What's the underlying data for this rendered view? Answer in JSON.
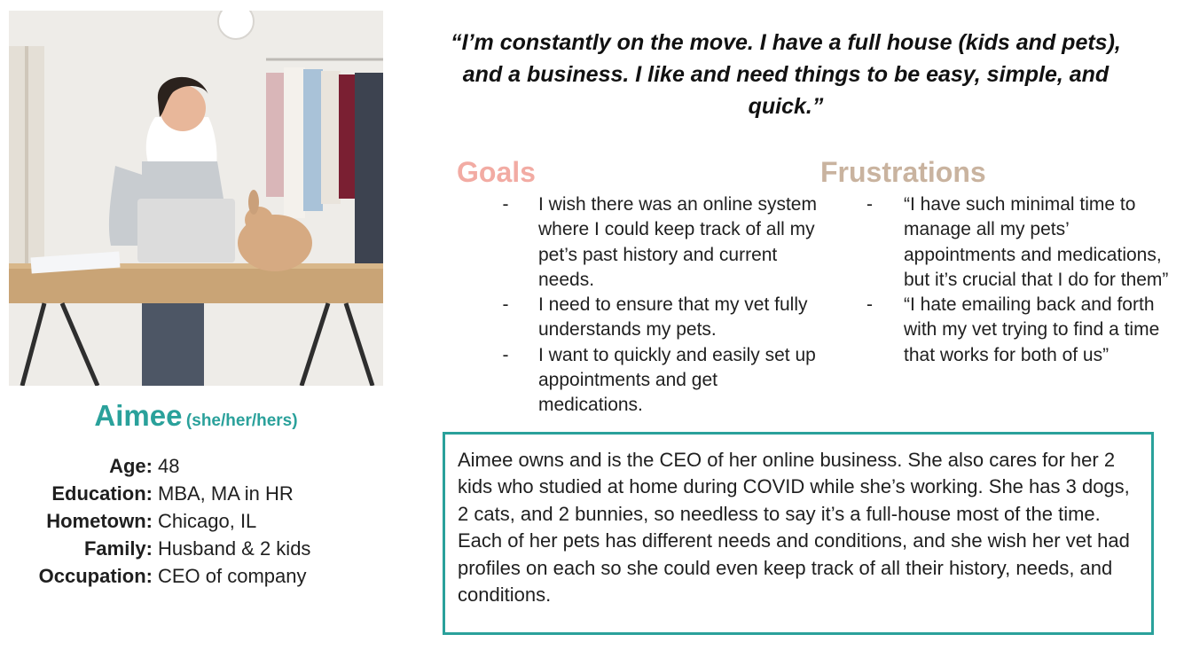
{
  "persona": {
    "photo_alt": "woman-with-laptop-and-bunny-photo",
    "name": "Aimee",
    "pronouns": "(she/her/hers)",
    "facts": [
      {
        "label": "Age:",
        "value": "48"
      },
      {
        "label": "Education:",
        "value": "MBA, MA in HR"
      },
      {
        "label": "Hometown:",
        "value": "Chicago, IL"
      },
      {
        "label": "Family:",
        "value": "Husband & 2 kids"
      },
      {
        "label": "Occupation:",
        "value": "CEO of company"
      }
    ]
  },
  "quote": "“I’m constantly on the move. I have a full house (kids and pets), and a business. I like and need things to be easy, simple, and quick.”",
  "goals": {
    "title": "Goals",
    "items": [
      "I wish there was an online system where I could keep track of all my pet’s past history and current needs.",
      "I need to ensure that my vet fully understands my pets.",
      "I want to quickly and easily set up appointments and get medications."
    ]
  },
  "frustrations": {
    "title": "Frustrations",
    "items": [
      "“I have such minimal time to manage all my pets’ appointments and medications, but it’s crucial that I do for them”",
      "“I hate emailing back and forth with my vet trying to find a time that works for both of us”"
    ]
  },
  "bullet_marker": "-",
  "bio": "Aimee owns and is the CEO of her online business. She also cares for her 2 kids who studied at home during COVID while she’s working. She has 3 dogs, 2 cats, and 2 bunnies, so needless to say it’s a full-house most of the time. Each of her pets has different needs and conditions, and she wish her vet had profiles on each so she could even keep track of all their history, needs, and conditions.",
  "colors": {
    "accent": "#2aa19b",
    "goals": "#f2aba3",
    "frustrations": "#c9b39f"
  }
}
